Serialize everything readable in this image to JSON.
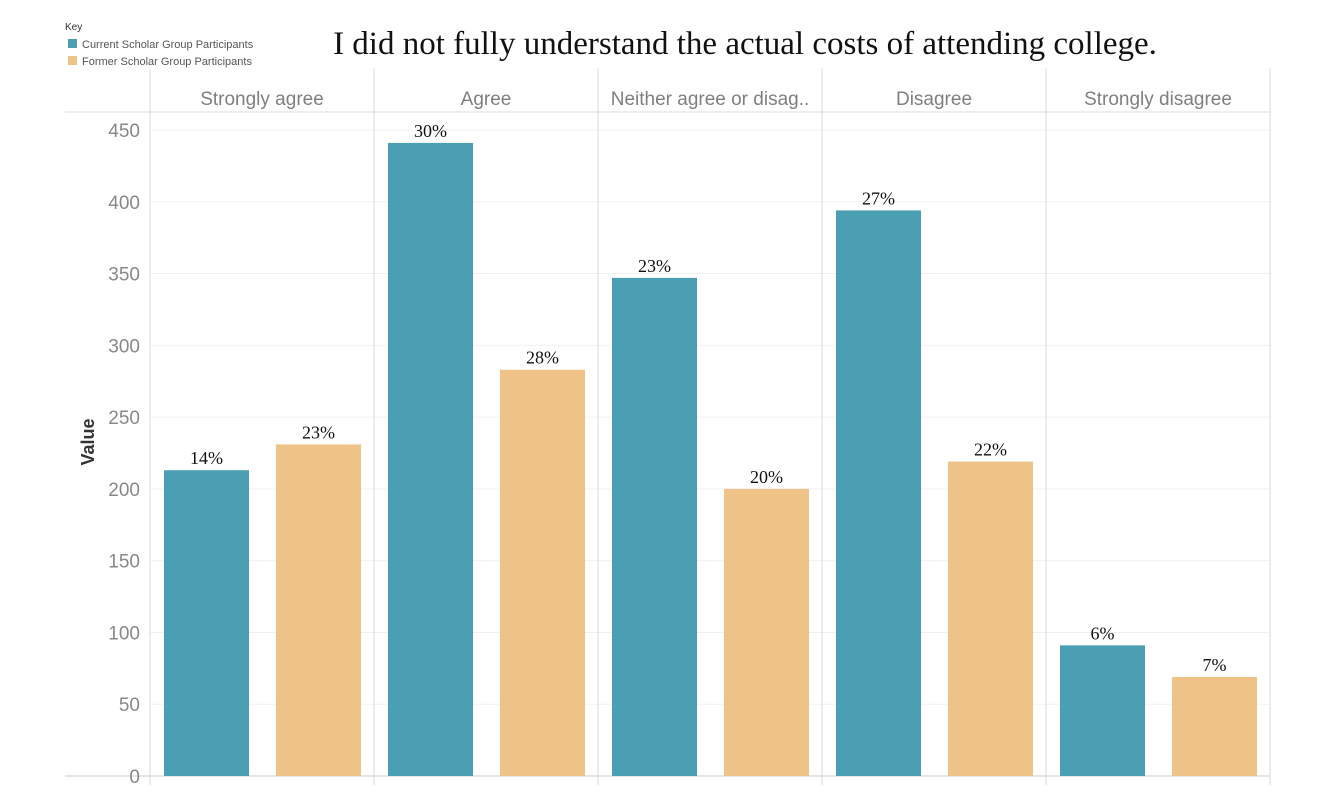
{
  "chart_data": {
    "type": "bar",
    "title": "I did not fully understand the actual costs of attending college.",
    "legend": {
      "title": "Key",
      "placement": "top-left",
      "entries": [
        "Current Scholar Group Participants",
        "Former Scholar Group Participants"
      ]
    },
    "ylabel": "Value",
    "ylim": [
      0,
      450
    ],
    "yticks": [
      0,
      50,
      100,
      150,
      200,
      250,
      300,
      350,
      400,
      450
    ],
    "grid": true,
    "categories": [
      "Strongly agree",
      "Agree",
      "Neither agree or disag..",
      "Disagree",
      "Strongly disagree"
    ],
    "series": [
      {
        "name": "Current Scholar Group Participants",
        "color": "#4a9fb2",
        "values": [
          213,
          441,
          347,
          394,
          91
        ],
        "labels": [
          "14%",
          "30%",
          "23%",
          "27%",
          "6%"
        ]
      },
      {
        "name": "Former Scholar Group Participants",
        "color": "#efc287",
        "values": [
          231,
          283,
          200,
          219,
          69
        ],
        "labels": [
          "23%",
          "28%",
          "20%",
          "22%",
          "7%"
        ]
      }
    ]
  }
}
